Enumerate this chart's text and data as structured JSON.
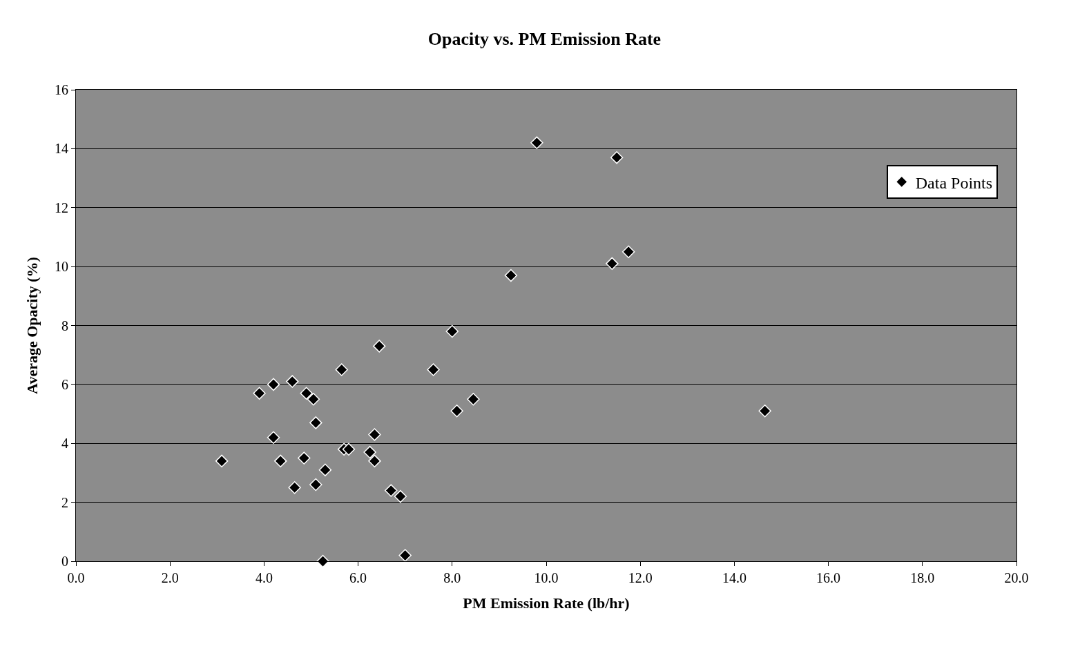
{
  "chart_data": {
    "type": "scatter",
    "title": "Opacity vs. PM Emission Rate",
    "xlabel": "PM Emission Rate (lb/hr)",
    "ylabel": "Average Opacity (%)",
    "series": [
      {
        "name": "Data Points",
        "color": "#000000",
        "x": [
          3.1,
          3.9,
          4.2,
          4.2,
          4.35,
          4.6,
          4.65,
          4.85,
          4.9,
          5.05,
          5.1,
          5.1,
          5.25,
          5.3,
          5.65,
          5.7,
          5.8,
          6.25,
          6.35,
          6.35,
          6.45,
          6.7,
          6.9,
          7.0,
          7.6,
          8.0,
          8.1,
          8.45,
          9.25,
          9.8,
          11.4,
          11.5,
          11.75,
          14.65
        ],
        "values": [
          3.4,
          5.7,
          6.0,
          4.2,
          3.4,
          6.1,
          2.5,
          3.5,
          5.7,
          5.5,
          4.7,
          2.6,
          0.0,
          3.1,
          6.5,
          3.8,
          3.8,
          3.7,
          4.3,
          3.4,
          7.3,
          2.4,
          2.2,
          0.2,
          6.5,
          7.8,
          5.1,
          5.5,
          9.7,
          14.2,
          10.1,
          13.7,
          10.5,
          5.1
        ]
      }
    ],
    "xlim": [
      0,
      20
    ],
    "xticks": [
      {
        "value": 0,
        "label": "0.0"
      },
      {
        "value": 2,
        "label": "2.0"
      },
      {
        "value": 4,
        "label": "4.0"
      },
      {
        "value": 6,
        "label": "6.0"
      },
      {
        "value": 8,
        "label": "8.0"
      },
      {
        "value": 10,
        "label": "10.0"
      },
      {
        "value": 12,
        "label": "12.0"
      },
      {
        "value": 14,
        "label": "14.0"
      },
      {
        "value": 16,
        "label": "16.0"
      },
      {
        "value": 18,
        "label": "18.0"
      },
      {
        "value": 20,
        "label": "20.0"
      }
    ],
    "ylim": [
      0,
      16
    ],
    "yticks": [
      0,
      2,
      4,
      6,
      8,
      10,
      12,
      14,
      16
    ],
    "grid": "y",
    "legend": "top right",
    "marker": "diamond"
  }
}
